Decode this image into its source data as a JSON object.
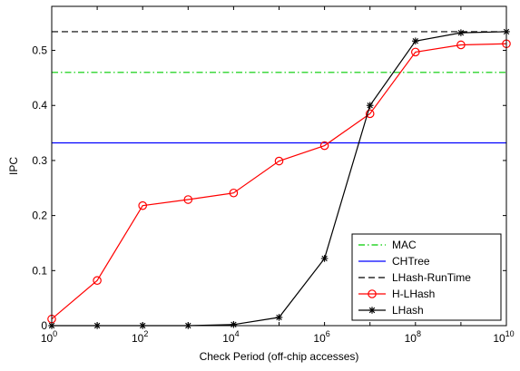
{
  "chart_data": {
    "type": "line",
    "xlabel": "Check Period (off-chip accesses)",
    "ylabel": "IPC",
    "x_scale": "log",
    "xlim": [
      1,
      10000000000
    ],
    "ylim": [
      0,
      0.58
    ],
    "grid": false,
    "legend_position": "bottom-right",
    "x_ticks": [
      {
        "base": "10",
        "exp": "0",
        "value": 1
      },
      {
        "base": "10",
        "exp": "2",
        "value": 100
      },
      {
        "base": "10",
        "exp": "4",
        "value": 10000
      },
      {
        "base": "10",
        "exp": "6",
        "value": 1000000
      },
      {
        "base": "10",
        "exp": "8",
        "value": 100000000
      },
      {
        "base": "10",
        "exp": "10",
        "value": 10000000000
      }
    ],
    "y_ticks": [
      {
        "label": "0",
        "value": 0
      },
      {
        "label": "0.1",
        "value": 0.1
      },
      {
        "label": "0.2",
        "value": 0.2
      },
      {
        "label": "0.3",
        "value": 0.3
      },
      {
        "label": "0.4",
        "value": 0.4
      },
      {
        "label": "0.5",
        "value": 0.5
      }
    ],
    "reference_lines": [
      {
        "name": "MAC",
        "value": 0.46,
        "color": "#00cc00",
        "style": "dashdot"
      },
      {
        "name": "CHTree",
        "value": 0.332,
        "color": "#0000ff",
        "style": "solid"
      },
      {
        "name": "LHash-RunTime",
        "value": 0.534,
        "color": "#000000",
        "style": "dashed"
      }
    ],
    "series": [
      {
        "name": "H-LHash",
        "color": "#ff0000",
        "marker": "circle",
        "x": [
          1,
          10,
          100,
          1000,
          10000,
          100000,
          1000000,
          10000000,
          100000000,
          1000000000,
          10000000000
        ],
        "values": [
          0.012,
          0.082,
          0.218,
          0.229,
          0.241,
          0.299,
          0.327,
          0.385,
          0.497,
          0.51,
          0.512
        ]
      },
      {
        "name": "LHash",
        "color": "#000000",
        "marker": "star",
        "x": [
          1,
          10,
          100,
          1000,
          10000,
          100000,
          1000000,
          10000000,
          100000000,
          1000000000,
          10000000000
        ],
        "values": [
          0,
          0,
          0,
          0,
          0.002,
          0.015,
          0.122,
          0.4,
          0.517,
          0.532,
          0.534
        ]
      }
    ]
  }
}
